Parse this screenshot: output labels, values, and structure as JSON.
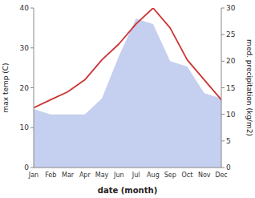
{
  "chart_data": {
    "type": "line",
    "categories": [
      "Jan",
      "Feb",
      "Mar",
      "Apr",
      "May",
      "Jun",
      "Jul",
      "Aug",
      "Sep",
      "Oct",
      "Nov",
      "Dec"
    ],
    "xlabel": "date (month)",
    "ylabel": "max temp (C)",
    "y2label": "med. precipitation (kg/m2)",
    "ylim": [
      0,
      40
    ],
    "yticks": [
      0,
      10,
      20,
      30,
      40
    ],
    "y2lim": [
      0,
      30
    ],
    "y2ticks": [
      0,
      5,
      10,
      15,
      20,
      25,
      30
    ],
    "grid": false,
    "series": [
      {
        "type": "area",
        "axis": "y2",
        "color": "#c5d0f0",
        "values": [
          11,
          10,
          10,
          10,
          13,
          21,
          28,
          27,
          20,
          19,
          14,
          13
        ]
      },
      {
        "type": "line",
        "color": "#cc3333",
        "values": [
          15,
          17,
          19,
          22,
          27,
          31,
          36,
          40,
          35,
          27,
          22,
          17
        ]
      }
    ]
  }
}
